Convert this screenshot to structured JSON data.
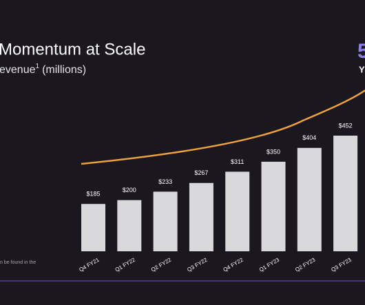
{
  "chart_data": {
    "type": "bar",
    "title": "Momentum at Scale",
    "subtitle": "evenue",
    "subtitle_sup": "1",
    "subtitle_unit": "(millions)",
    "headline_figure": "5",
    "headline_caption": "Y",
    "footnote": "n be found in the",
    "categories": [
      "Q4 FY21",
      "Q1 FY22",
      "Q2 FY22",
      "Q3 FY22",
      "Q4 FY22",
      "Q1 FY23",
      "Q2 FY23",
      "Q3 FY23"
    ],
    "values": [
      185,
      200,
      233,
      267,
      311,
      350,
      404,
      452
    ],
    "value_labels": [
      "$185",
      "$200",
      "$233",
      "$267",
      "$311",
      "$350",
      "$404",
      "$452"
    ],
    "color": "#d9d9db",
    "trend_color": "#f0a23a"
  }
}
